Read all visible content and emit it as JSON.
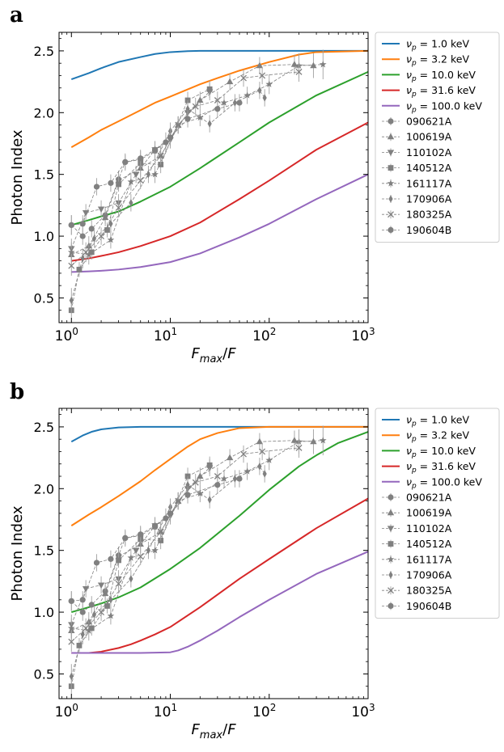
{
  "panels": [
    {
      "label": "a"
    },
    {
      "label": "b"
    }
  ],
  "legend": {
    "model_prefix": "ν",
    "model_sub": "p",
    "model_suffix": " = ",
    "unit": " keV",
    "grb_ids": [
      "090621A",
      "100619A",
      "110102A",
      "140512A",
      "161117A",
      "170906A",
      "180325A",
      "190604B"
    ]
  },
  "chart_data": [
    {
      "type": "line",
      "panel": "a",
      "xscale": "log",
      "xlim": [
        0.75,
        1000
      ],
      "ylim": [
        0.3,
        2.65
      ],
      "xlabel": "F_max/F",
      "ylabel": "Photon Index",
      "xticks": [
        1,
        10,
        100,
        1000
      ],
      "xtick_labels": [
        "10^0",
        "10^1",
        "10^2",
        "10^3"
      ],
      "yticks": [
        0.5,
        1.0,
        1.5,
        2.0,
        2.5
      ],
      "ytick_labels": [
        "0.5",
        "1.0",
        "1.5",
        "2.0",
        "2.5"
      ],
      "model_series": [
        {
          "name": "1.0",
          "color": "#1f77b4",
          "x": [
            1,
            1.5,
            2,
            3,
            5,
            7,
            10,
            15,
            20,
            30,
            100,
            1000
          ],
          "y": [
            2.27,
            2.32,
            2.36,
            2.41,
            2.45,
            2.475,
            2.49,
            2.498,
            2.5,
            2.5,
            2.5,
            2.5
          ]
        },
        {
          "name": "3.2",
          "color": "#ff7f0e",
          "x": [
            1,
            1.5,
            2,
            3,
            5,
            7,
            10,
            20,
            30,
            50,
            100,
            200,
            300,
            1000
          ],
          "y": [
            1.72,
            1.8,
            1.86,
            1.93,
            2.02,
            2.08,
            2.13,
            2.23,
            2.28,
            2.34,
            2.41,
            2.47,
            2.49,
            2.5
          ]
        },
        {
          "name": "10.0",
          "color": "#2ca02c",
          "x": [
            1,
            1.5,
            2,
            3,
            5,
            10,
            20,
            50,
            100,
            300,
            1000
          ],
          "y": [
            1.09,
            1.13,
            1.16,
            1.2,
            1.28,
            1.4,
            1.55,
            1.76,
            1.92,
            2.14,
            2.33
          ]
        },
        {
          "name": "31.6",
          "color": "#d62728",
          "x": [
            1,
            1.5,
            2,
            3,
            5,
            10,
            20,
            50,
            100,
            300,
            1000
          ],
          "y": [
            0.8,
            0.82,
            0.84,
            0.87,
            0.92,
            1.0,
            1.11,
            1.3,
            1.45,
            1.7,
            1.92
          ]
        },
        {
          "name": "100.0",
          "color": "#9467bd",
          "x": [
            1,
            1.5,
            2,
            3,
            5,
            10,
            20,
            50,
            100,
            300,
            1000
          ],
          "y": [
            0.71,
            0.715,
            0.72,
            0.73,
            0.75,
            0.79,
            0.86,
            0.99,
            1.1,
            1.3,
            1.5
          ]
        }
      ]
    },
    {
      "type": "line",
      "panel": "b",
      "xscale": "log",
      "xlim": [
        0.75,
        1000
      ],
      "ylim": [
        0.3,
        2.65
      ],
      "xlabel": "F_max/F",
      "ylabel": "Photon Index",
      "xticks": [
        1,
        10,
        100,
        1000
      ],
      "xtick_labels": [
        "10^0",
        "10^1",
        "10^2",
        "10^3"
      ],
      "yticks": [
        0.5,
        1.0,
        1.5,
        2.0,
        2.5
      ],
      "ytick_labels": [
        "0.5",
        "1.0",
        "1.5",
        "2.0",
        "2.5"
      ],
      "model_series": [
        {
          "name": "1.0",
          "color": "#1f77b4",
          "x": [
            1,
            1.3,
            1.6,
            2,
            3,
            5,
            10,
            1000
          ],
          "y": [
            2.38,
            2.43,
            2.46,
            2.48,
            2.495,
            2.5,
            2.5,
            2.5
          ]
        },
        {
          "name": "3.2",
          "color": "#ff7f0e",
          "x": [
            1,
            1.5,
            2,
            3,
            5,
            7,
            10,
            15,
            20,
            30,
            50,
            100,
            1000
          ],
          "y": [
            1.7,
            1.79,
            1.85,
            1.94,
            2.06,
            2.15,
            2.24,
            2.34,
            2.4,
            2.45,
            2.49,
            2.5,
            2.5
          ]
        },
        {
          "name": "10.0",
          "color": "#2ca02c",
          "x": [
            1,
            1.5,
            2,
            3,
            5,
            10,
            20,
            50,
            100,
            200,
            300,
            500,
            1000
          ],
          "y": [
            1.0,
            1.04,
            1.07,
            1.12,
            1.2,
            1.35,
            1.52,
            1.78,
            1.99,
            2.18,
            2.27,
            2.37,
            2.46
          ]
        },
        {
          "name": "31.6",
          "color": "#d62728",
          "x": [
            1,
            1.5,
            2,
            3,
            4,
            5,
            7,
            10,
            20,
            50,
            100,
            300,
            1000
          ],
          "y": [
            0.67,
            0.67,
            0.68,
            0.71,
            0.74,
            0.77,
            0.82,
            0.88,
            1.04,
            1.27,
            1.43,
            1.68,
            1.92
          ]
        },
        {
          "name": "100.0",
          "color": "#9467bd",
          "x": [
            1,
            2,
            5,
            10,
            12,
            15,
            20,
            30,
            50,
            100,
            300,
            1000
          ],
          "y": [
            0.67,
            0.67,
            0.67,
            0.675,
            0.69,
            0.72,
            0.77,
            0.85,
            0.96,
            1.1,
            1.31,
            1.49
          ]
        }
      ]
    }
  ],
  "grb_data": [
    {
      "name": "090621A",
      "marker": "circle",
      "x": [
        1,
        1.3,
        1.6,
        2.2,
        3,
        3.5,
        5,
        7,
        9
      ],
      "y": [
        1.09,
        1.0,
        1.06,
        1.17,
        1.46,
        1.6,
        1.62,
        1.69,
        1.76
      ],
      "yerr": [
        0.08,
        0.07,
        0.07,
        0.07,
        0.07,
        0.06,
        0.07,
        0.07,
        0.08
      ]
    },
    {
      "name": "100619A",
      "marker": "triangle",
      "x": [
        1,
        1.5,
        2.2,
        3,
        5,
        8,
        12,
        20,
        40,
        80,
        180,
        280
      ],
      "y": [
        0.85,
        0.92,
        1.15,
        1.45,
        1.55,
        1.65,
        1.9,
        2.1,
        2.25,
        2.38,
        2.39,
        2.38
      ],
      "yerr": [
        0.08,
        0.08,
        0.07,
        0.07,
        0.07,
        0.07,
        0.07,
        0.07,
        0.07,
        0.07,
        0.08,
        0.1
      ]
    },
    {
      "name": "110102A",
      "marker": "triangle-down",
      "x": [
        1,
        1.4,
        2,
        3,
        4.5,
        7,
        10,
        15,
        25
      ],
      "y": [
        0.9,
        1.19,
        1.22,
        1.27,
        1.5,
        1.7,
        1.78,
        2.0,
        2.17
      ],
      "yerr": [
        0.08,
        0.07,
        0.07,
        0.07,
        0.07,
        0.07,
        0.07,
        0.07,
        0.07
      ]
    },
    {
      "name": "140512A",
      "marker": "square",
      "x": [
        1,
        1.2,
        1.6,
        2.3,
        3,
        5,
        8,
        15,
        25
      ],
      "y": [
        0.4,
        0.73,
        0.87,
        1.05,
        1.42,
        1.59,
        1.58,
        2.1,
        2.19
      ],
      "yerr": [
        0.06,
        0.06,
        0.06,
        0.06,
        0.06,
        0.07,
        0.07,
        0.07,
        0.07
      ]
    },
    {
      "name": "161117A",
      "marker": "star",
      "x": [
        1,
        1.5,
        2.5,
        4,
        7,
        12,
        20,
        35,
        60,
        100,
        200,
        350
      ],
      "y": [
        0.87,
        0.85,
        0.97,
        1.44,
        1.5,
        1.9,
        1.96,
        2.08,
        2.14,
        2.23,
        2.38,
        2.39
      ],
      "yerr": [
        0.08,
        0.08,
        0.07,
        0.07,
        0.07,
        0.07,
        0.07,
        0.07,
        0.07,
        0.08,
        0.1,
        0.12
      ]
    },
    {
      "name": "170906A",
      "marker": "thin-diamond",
      "x": [
        1,
        1.3,
        1.7,
        2.5,
        4,
        6,
        10,
        15,
        25,
        45,
        80,
        90
      ],
      "y": [
        0.48,
        0.82,
        0.98,
        1.1,
        1.27,
        1.5,
        1.85,
        2.03,
        1.91,
        2.08,
        2.18,
        2.12
      ],
      "yerr": [
        0.1,
        0.08,
        0.07,
        0.07,
        0.07,
        0.07,
        0.07,
        0.07,
        0.07,
        0.07,
        0.07,
        0.07
      ]
    },
    {
      "name": "180325A",
      "marker": "x",
      "x": [
        1,
        1.4,
        2,
        3,
        5,
        8,
        12,
        18,
        30,
        55,
        85,
        200
      ],
      "y": [
        0.76,
        0.87,
        1.0,
        1.23,
        1.45,
        1.65,
        1.9,
        2.05,
        2.1,
        2.28,
        2.3,
        2.33
      ],
      "yerr": [
        0.08,
        0.08,
        0.07,
        0.07,
        0.07,
        0.07,
        0.07,
        0.07,
        0.07,
        0.07,
        0.07,
        0.08
      ]
    },
    {
      "name": "190604B",
      "marker": "circle",
      "x": [
        1,
        1.3,
        1.8,
        2.5,
        3.5,
        5,
        7,
        10,
        15,
        30,
        50
      ],
      "y": [
        1.09,
        1.1,
        1.4,
        1.43,
        1.6,
        1.63,
        1.7,
        1.8,
        1.95,
        2.03,
        2.08
      ],
      "yerr": [
        0.08,
        0.07,
        0.07,
        0.07,
        0.07,
        0.07,
        0.07,
        0.07,
        0.07,
        0.07,
        0.07
      ]
    }
  ]
}
